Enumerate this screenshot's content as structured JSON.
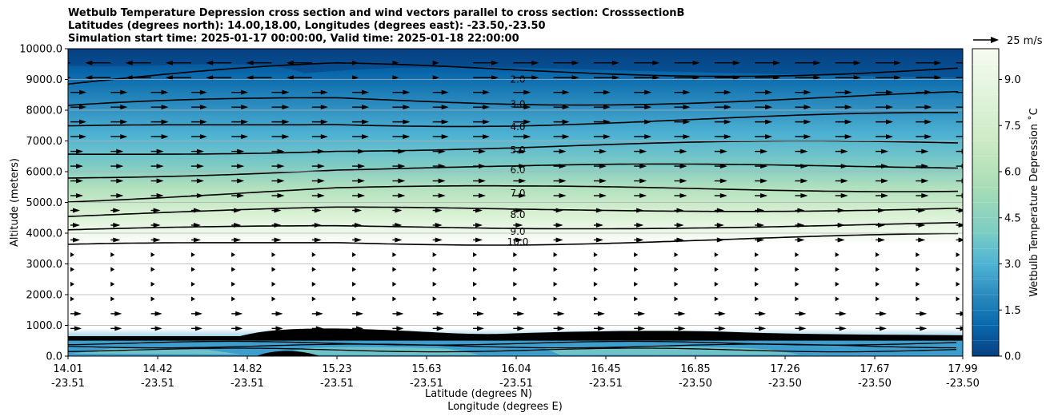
{
  "titles": {
    "line1": "Wetbulb Temperature Depression cross section and wind vectors parallel to cross section: CrosssectionB",
    "line2": "Latitudes (degrees north): 14.00,18.00, Longitudes (degrees east): -23.50,-23.50",
    "line3": "Simulation start time: 2025-01-17 00:00:00, Valid time: 2025-01-18 22:00:00"
  },
  "chart_data": {
    "type": "heatmap",
    "subtype": "filled contour with wind vectors",
    "xlabel": "Latitude (degrees N)",
    "xlabel2": "Longitude (degrees E)",
    "ylabel": "Altitude (meters)",
    "ylim": [
      0,
      10000
    ],
    "yticks": [
      "0.0",
      "1000.0",
      "2000.0",
      "3000.0",
      "4000.0",
      "5000.0",
      "6000.0",
      "7000.0",
      "8000.0",
      "9000.0",
      "10000.0"
    ],
    "xticks_lat": [
      "14.01",
      "14.42",
      "14.82",
      "15.23",
      "15.63",
      "16.04",
      "16.45",
      "16.85",
      "17.26",
      "17.67",
      "17.99"
    ],
    "xticks_lon": [
      "-23.51",
      "-23.51",
      "-23.51",
      "-23.51",
      "-23.51",
      "-23.51",
      "-23.51",
      "-23.50",
      "-23.50",
      "-23.50",
      "-23.50"
    ],
    "colorbar": {
      "label": "Wetbulb Temperature Depression ˚C",
      "range": [
        0,
        10
      ],
      "ticks": [
        "0.0",
        "1.5",
        "3.0",
        "4.5",
        "6.0",
        "7.5",
        "9.0"
      ],
      "colormap": "GnBu_r"
    },
    "quiver_key": "25 m/s",
    "grid": "horizontal",
    "contour_labels": [
      {
        "label": "2.0",
        "alt": 9000
      },
      {
        "label": "3.0",
        "alt": 8200
      },
      {
        "label": "4.0",
        "alt": 7450
      },
      {
        "label": "5.0",
        "alt": 6700
      },
      {
        "label": "6.0",
        "alt": 6050
      },
      {
        "label": "7.0",
        "alt": 5300
      },
      {
        "label": "8.0",
        "alt": 4600
      },
      {
        "label": "9.0",
        "alt": 4050
      },
      {
        "label": "10.0",
        "alt": 3720
      }
    ],
    "profile": {
      "alt": [
        0,
        300,
        500,
        700,
        1000,
        3500,
        3800,
        4200,
        4700,
        5500,
        6200,
        7000,
        8000,
        9000,
        10000
      ],
      "value": [
        4.5,
        3.5,
        3.0,
        2.0,
        10.5,
        10.2,
        9.8,
        9.0,
        8.0,
        7.0,
        6.0,
        4.5,
        3.0,
        2.0,
        0.5
      ]
    }
  }
}
